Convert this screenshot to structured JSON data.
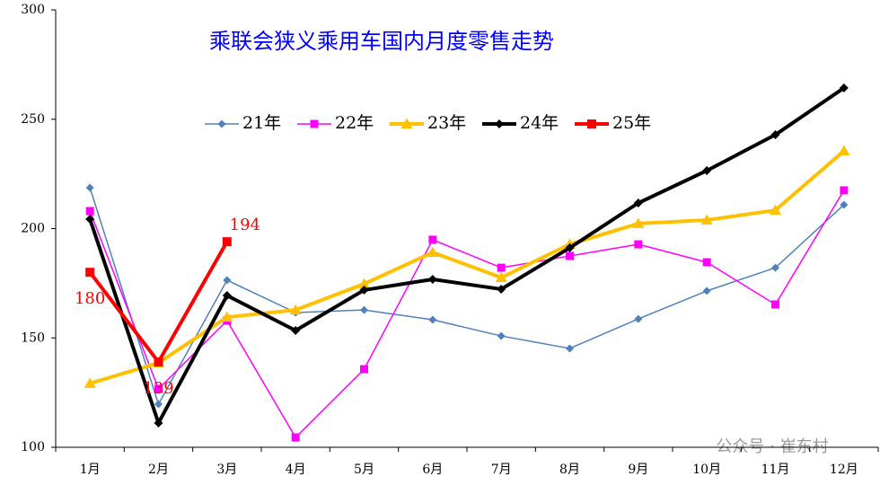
{
  "chart_data": {
    "type": "line",
    "title": "乘联会狭义乘用车国内月度零售走势",
    "categories": [
      "1月",
      "2月",
      "3月",
      "4月",
      "5月",
      "6月",
      "7月",
      "8月",
      "9月",
      "10月",
      "11月",
      "12月"
    ],
    "series": [
      {
        "name": "21年",
        "color": "#4f81bd",
        "marker": "diamond",
        "line_width": 1.5,
        "values": [
          218.7,
          119.7,
          176.4,
          161.6,
          162.8,
          158.3,
          150.9,
          145.2,
          158.7,
          171.5,
          182.1,
          210.9
        ]
      },
      {
        "name": "22年",
        "color": "#ff00ff",
        "marker": "square",
        "line_width": 1.5,
        "values": [
          208,
          126.7,
          157.9,
          104.5,
          135.7,
          194.9,
          182.1,
          187.5,
          192.8,
          184.6,
          165.3,
          217.5
        ]
      },
      {
        "name": "23年",
        "color": "#ffc000",
        "marker": "triangle",
        "line_width": 4,
        "values": [
          129.2,
          138.6,
          159.5,
          162.8,
          174.7,
          189.1,
          177.6,
          192.8,
          202.3,
          203.9,
          208.4,
          235.5
        ]
      },
      {
        "name": "24年",
        "color": "#000000",
        "marker": "diamond",
        "line_width": 4,
        "values": [
          204.3,
          111.1,
          169.4,
          153.4,
          171.9,
          176.8,
          172.3,
          191.2,
          211.7,
          226.5,
          242.9,
          264.3
        ]
      },
      {
        "name": "25年",
        "color": "#ff0000",
        "marker": "square",
        "line_width": 4,
        "data_labels": true,
        "values": [
          180,
          139,
          194,
          null,
          null,
          null,
          null,
          null,
          null,
          null,
          null,
          null
        ]
      }
    ],
    "ylim": [
      100,
      300
    ],
    "yticks": [
      100,
      150,
      200,
      250,
      300
    ],
    "watermark": "公众号 · 崔东村"
  }
}
